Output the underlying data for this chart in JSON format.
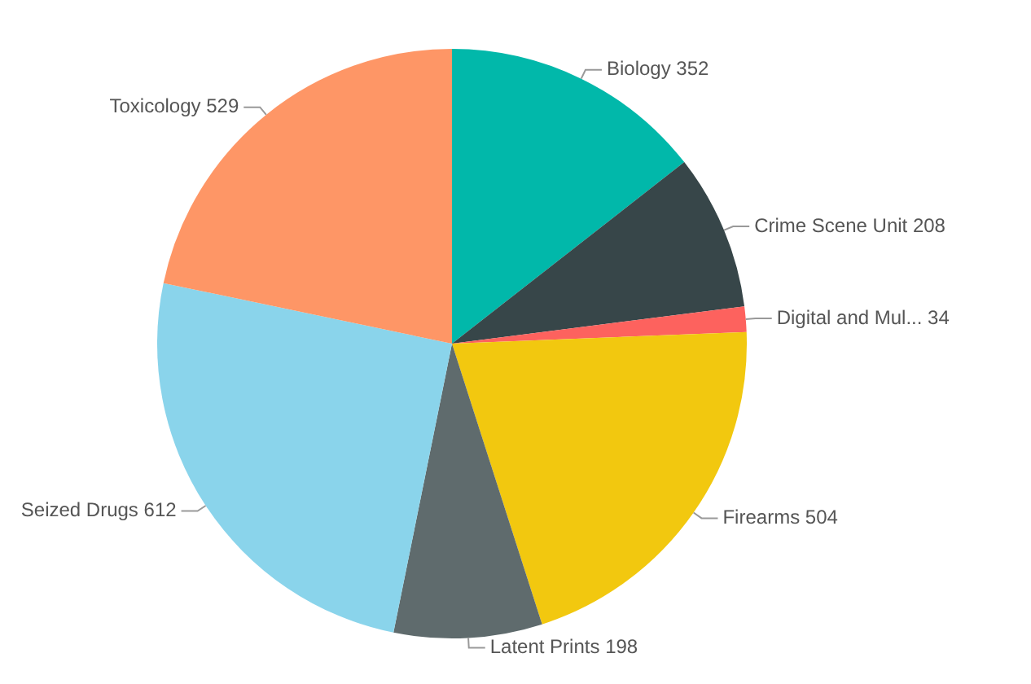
{
  "chart_data": {
    "type": "pie",
    "categories": [
      "Biology",
      "Crime Scene Unit",
      "Digital and Mul...",
      "Firearms",
      "Latent Prints",
      "Seized Drugs",
      "Toxicology"
    ],
    "values": [
      352,
      208,
      34,
      504,
      198,
      612,
      529
    ],
    "colors": [
      "#01b8aa",
      "#374649",
      "#fd625e",
      "#f2c80f",
      "#5f6b6d",
      "#8ad4eb",
      "#fe9666"
    ],
    "data_labels": true,
    "legend": false
  }
}
